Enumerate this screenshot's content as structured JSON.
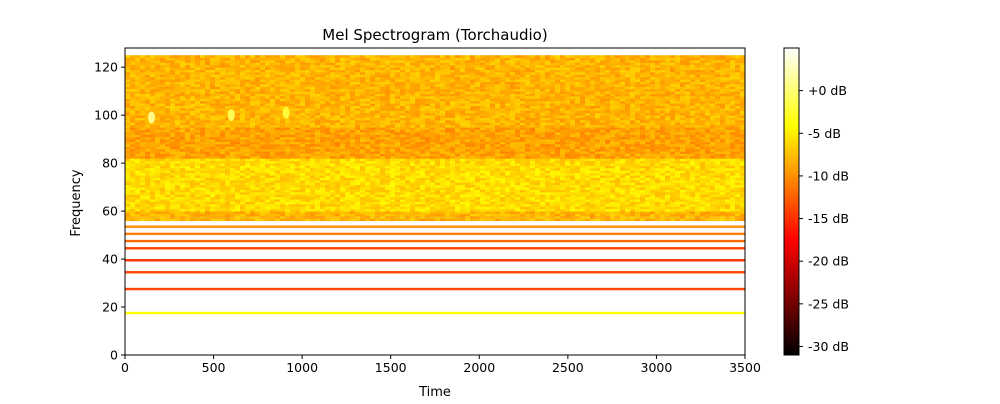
{
  "chart_data": {
    "type": "heatmap",
    "title": "Mel Spectrogram (Torchaudio)",
    "xlabel": "Time",
    "ylabel": "Frequency",
    "xlim": [
      0,
      3500
    ],
    "ylim": [
      0,
      128
    ],
    "x_ticks": [
      0,
      500,
      1000,
      1500,
      2000,
      2500,
      3000,
      3500
    ],
    "y_ticks": [
      0,
      20,
      40,
      60,
      80,
      100,
      120
    ],
    "colormap": "hot",
    "colorbar": {
      "range_db": [
        -31,
        5
      ],
      "ticks": [
        0,
        -5,
        -10,
        -15,
        -20,
        -25,
        -30
      ],
      "tick_labels": [
        "+0 dB",
        "-5 dB",
        "-10 dB",
        "-15 dB",
        "-20 dB",
        "-25 dB",
        "-30 dB"
      ]
    },
    "bands": [
      {
        "mel_from": 56,
        "mel_to": 125,
        "level_db": -8,
        "description": "continuous orange-yellow texture, brighter (≈-6 dB) between mel 60 and 82"
      },
      {
        "mel": 53.5,
        "level_db": -10
      },
      {
        "mel": 50.5,
        "level_db": -11
      },
      {
        "mel": 47.5,
        "level_db": -12
      },
      {
        "mel": 44.5,
        "level_db": -14
      },
      {
        "mel": 39.5,
        "level_db": -15
      },
      {
        "mel": 34.5,
        "level_db": -14
      },
      {
        "mel": 27.5,
        "level_db": -14
      },
      {
        "mel": 17.5,
        "level_db": -4
      }
    ],
    "hotspots": [
      {
        "time": 150,
        "mel": 99,
        "level_db": 1
      },
      {
        "time": 600,
        "mel": 100,
        "level_db": -1
      },
      {
        "time": 910,
        "mel": 101,
        "level_db": -2
      }
    ]
  }
}
